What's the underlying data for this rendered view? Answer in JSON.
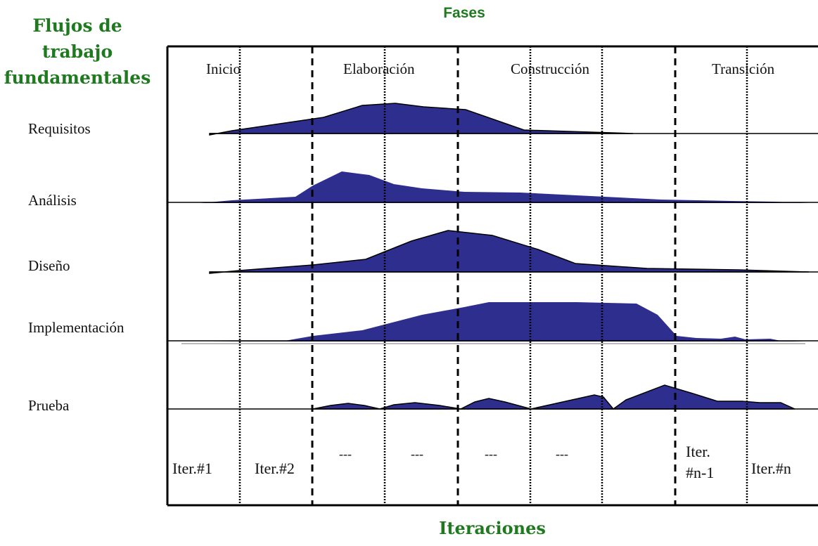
{
  "header": {
    "left_title": [
      "Flujos de",
      "trabajo",
      "fundamentales"
    ],
    "phases_title": "Fases",
    "iterations_title": "Iteraciones"
  },
  "phases": [
    "Inicio",
    "Elaboración",
    "Construcción",
    "Transición"
  ],
  "workflows": [
    "Requisitos",
    "Análisis",
    "Diseño",
    "Implementación",
    "Prueba"
  ],
  "iterations": {
    "iter1": "Iter.#1",
    "iter2": "Iter.#2",
    "dash1": "---",
    "dash2": "---",
    "dash3": "---",
    "dash4": "---",
    "iter_n1_a": "Iter.",
    "iter_n1_b": "#n-1",
    "iter_n": "Iter.#n"
  },
  "colors": {
    "fill": "#2e2e8f",
    "title_green": "#1f7a1f",
    "line": "#000000"
  }
}
